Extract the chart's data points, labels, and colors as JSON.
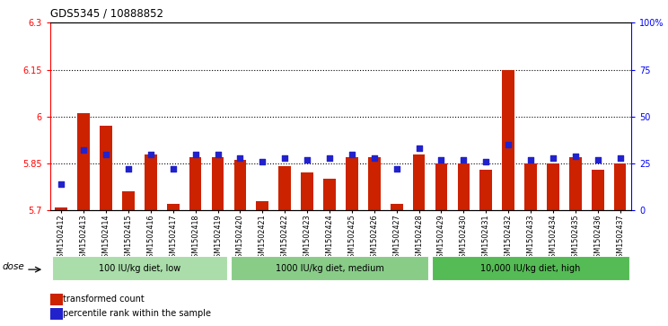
{
  "title": "GDS5345 / 10888852",
  "samples": [
    "GSM1502412",
    "GSM1502413",
    "GSM1502414",
    "GSM1502415",
    "GSM1502416",
    "GSM1502417",
    "GSM1502418",
    "GSM1502419",
    "GSM1502420",
    "GSM1502421",
    "GSM1502422",
    "GSM1502423",
    "GSM1502424",
    "GSM1502425",
    "GSM1502426",
    "GSM1502427",
    "GSM1502428",
    "GSM1502429",
    "GSM1502430",
    "GSM1502431",
    "GSM1502432",
    "GSM1502433",
    "GSM1502434",
    "GSM1502435",
    "GSM1502436",
    "GSM1502437"
  ],
  "red_values": [
    5.71,
    6.01,
    5.97,
    5.76,
    5.88,
    5.72,
    5.87,
    5.87,
    5.86,
    5.73,
    5.84,
    5.82,
    5.8,
    5.87,
    5.87,
    5.72,
    5.88,
    5.85,
    5.85,
    5.83,
    6.15,
    5.85,
    5.85,
    5.87,
    5.83,
    5.85
  ],
  "blue_values": [
    14,
    32,
    30,
    22,
    30,
    22,
    30,
    30,
    28,
    26,
    28,
    27,
    28,
    30,
    28,
    22,
    33,
    27,
    27,
    26,
    35,
    27,
    28,
    29,
    27,
    28
  ],
  "ymin": 5.7,
  "ymax": 6.3,
  "yticks": [
    5.7,
    5.85,
    6.0,
    6.15,
    6.3
  ],
  "ytick_labels": [
    "5.7",
    "5.85",
    "6",
    "6.15",
    "6.3"
  ],
  "right_yticks": [
    0,
    25,
    50,
    75,
    100
  ],
  "right_ytick_labels": [
    "0",
    "25",
    "50",
    "75",
    "100%"
  ],
  "hlines": [
    5.85,
    6.0,
    6.15
  ],
  "groups": [
    {
      "label": "100 IU/kg diet, low",
      "start": 0,
      "end": 8,
      "color": "#aaddaa"
    },
    {
      "label": "1000 IU/kg diet, medium",
      "start": 8,
      "end": 17,
      "color": "#88cc88"
    },
    {
      "label": "10,000 IU/kg diet, high",
      "start": 17,
      "end": 26,
      "color": "#55bb55"
    }
  ],
  "bar_color": "#CC2200",
  "blue_color": "#2222CC",
  "xtick_bg": "#D0D0D0",
  "plot_bg": "#FFFFFF",
  "fig_bg": "#FFFFFF"
}
